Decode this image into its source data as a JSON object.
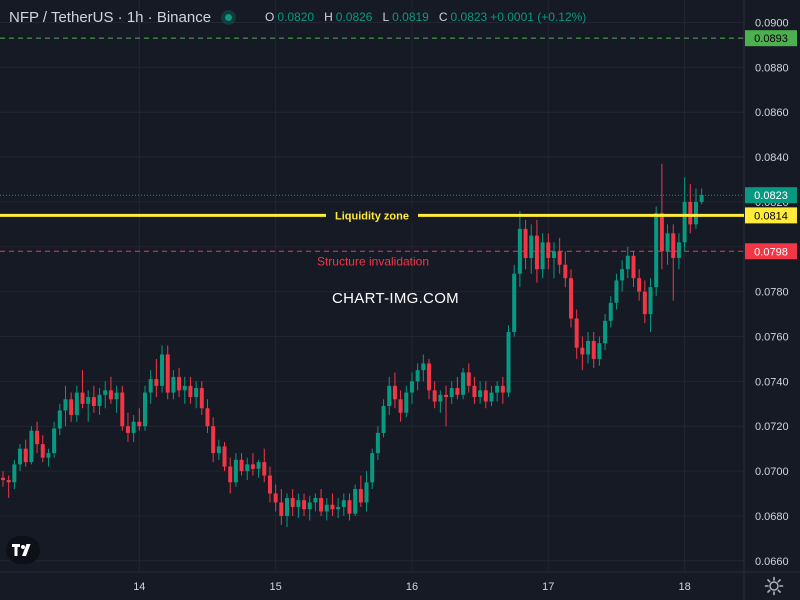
{
  "header": {
    "symbol": "NFP / TetherUS · 1h · Binance",
    "ohlc": {
      "o_label": "O",
      "o": "0.0820",
      "h_label": "H",
      "h": "0.0826",
      "l_label": "L",
      "l": "0.0819",
      "c_label": "C",
      "c": "0.0823",
      "change": "+0.0001 (+0.12%)"
    }
  },
  "watermark": "CHART-IMG.COM",
  "colors": {
    "background": "#161a25",
    "up": "#089981",
    "down": "#f23645",
    "grid": "#232632",
    "axis_text": "#d1d4dc",
    "liquidity": "#ffeb3b",
    "invalidation": "#f23645",
    "target": "#4caf50"
  },
  "icons": {
    "logo": "tradingview-logo-icon",
    "settings": "gear-icon"
  },
  "chart_data": {
    "type": "candlestick",
    "title": "",
    "xlabel": "",
    "ylabel": "",
    "ylim": [
      0.0655,
      0.0902
    ],
    "y_ticks": [
      "0.0660",
      "0.0680",
      "0.0700",
      "0.0720",
      "0.0740",
      "0.0760",
      "0.0780",
      "0.0800",
      "0.0820",
      "0.0840",
      "0.0860",
      "0.0880",
      "0.0900"
    ],
    "x_ticks": [
      {
        "label": "14",
        "bar": 24
      },
      {
        "label": "15",
        "bar": 48
      },
      {
        "label": "16",
        "bar": 72
      },
      {
        "label": "17",
        "bar": 96
      },
      {
        "label": "18",
        "bar": 120
      }
    ],
    "grid": true,
    "current_price": {
      "value": 0.0823,
      "label": "0.0823"
    },
    "levels": [
      {
        "name": "Liquidity zone",
        "value": 0.0814,
        "label": "0.0814",
        "style": "solid",
        "color": "#ffeb3b"
      },
      {
        "name": "Structure invalidation",
        "value": 0.0798,
        "label": "0.0798",
        "style": "dashed",
        "color": "#f23645"
      },
      {
        "name": "",
        "value": 0.0893,
        "label": "0.0893",
        "style": "dashed",
        "color": "#4caf50"
      }
    ],
    "candles_ohlc": [
      [
        0.0697,
        0.07,
        0.0693,
        0.0696
      ],
      [
        0.0696,
        0.0698,
        0.0688,
        0.0695
      ],
      [
        0.0695,
        0.0705,
        0.0692,
        0.0703
      ],
      [
        0.0703,
        0.0712,
        0.07,
        0.071
      ],
      [
        0.071,
        0.0714,
        0.0702,
        0.0704
      ],
      [
        0.0704,
        0.072,
        0.0703,
        0.0718
      ],
      [
        0.0718,
        0.0722,
        0.0708,
        0.0712
      ],
      [
        0.0712,
        0.0716,
        0.0704,
        0.0706
      ],
      [
        0.0706,
        0.071,
        0.0702,
        0.0708
      ],
      [
        0.0708,
        0.0722,
        0.0706,
        0.0719
      ],
      [
        0.0719,
        0.073,
        0.0716,
        0.0727
      ],
      [
        0.0727,
        0.0738,
        0.072,
        0.0732
      ],
      [
        0.0732,
        0.0735,
        0.0722,
        0.0725
      ],
      [
        0.0725,
        0.0738,
        0.0722,
        0.0735
      ],
      [
        0.0735,
        0.0745,
        0.0728,
        0.073
      ],
      [
        0.073,
        0.0736,
        0.0722,
        0.0733
      ],
      [
        0.0733,
        0.0738,
        0.0726,
        0.0729
      ],
      [
        0.0729,
        0.0737,
        0.0725,
        0.0734
      ],
      [
        0.0734,
        0.074,
        0.0728,
        0.0736
      ],
      [
        0.0736,
        0.0742,
        0.073,
        0.0732
      ],
      [
        0.0732,
        0.0738,
        0.0726,
        0.0735
      ],
      [
        0.0735,
        0.0738,
        0.0718,
        0.072
      ],
      [
        0.072,
        0.0726,
        0.0713,
        0.0717
      ],
      [
        0.0717,
        0.0725,
        0.0713,
        0.0722
      ],
      [
        0.0722,
        0.0728,
        0.0718,
        0.072
      ],
      [
        0.072,
        0.0738,
        0.0718,
        0.0735
      ],
      [
        0.0735,
        0.0745,
        0.073,
        0.0741
      ],
      [
        0.0741,
        0.075,
        0.0733,
        0.0738
      ],
      [
        0.0738,
        0.0756,
        0.0735,
        0.0752
      ],
      [
        0.0752,
        0.0756,
        0.0732,
        0.0735
      ],
      [
        0.0735,
        0.0745,
        0.0732,
        0.0742
      ],
      [
        0.0742,
        0.0746,
        0.0733,
        0.0736
      ],
      [
        0.0736,
        0.0742,
        0.073,
        0.0738
      ],
      [
        0.0738,
        0.0742,
        0.073,
        0.0733
      ],
      [
        0.0733,
        0.074,
        0.0728,
        0.0737
      ],
      [
        0.0737,
        0.074,
        0.0725,
        0.0728
      ],
      [
        0.0728,
        0.0732,
        0.0717,
        0.072
      ],
      [
        0.072,
        0.0724,
        0.0704,
        0.0708
      ],
      [
        0.0708,
        0.0714,
        0.0705,
        0.0711
      ],
      [
        0.0711,
        0.0713,
        0.07,
        0.0702
      ],
      [
        0.0702,
        0.0706,
        0.069,
        0.0695
      ],
      [
        0.0695,
        0.0708,
        0.0693,
        0.0705
      ],
      [
        0.0705,
        0.0708,
        0.0698,
        0.07
      ],
      [
        0.07,
        0.0706,
        0.0696,
        0.0703
      ],
      [
        0.0703,
        0.0708,
        0.0698,
        0.0701
      ],
      [
        0.0701,
        0.0705,
        0.0697,
        0.0704
      ],
      [
        0.0704,
        0.071,
        0.0695,
        0.0698
      ],
      [
        0.0698,
        0.0702,
        0.0686,
        0.069
      ],
      [
        0.069,
        0.0694,
        0.0682,
        0.0686
      ],
      [
        0.0686,
        0.0692,
        0.0676,
        0.068
      ],
      [
        0.068,
        0.069,
        0.0675,
        0.0688
      ],
      [
        0.0688,
        0.0692,
        0.068,
        0.0684
      ],
      [
        0.0684,
        0.069,
        0.0679,
        0.0687
      ],
      [
        0.0687,
        0.069,
        0.068,
        0.0683
      ],
      [
        0.0683,
        0.0689,
        0.0678,
        0.0686
      ],
      [
        0.0686,
        0.069,
        0.0682,
        0.0688
      ],
      [
        0.0688,
        0.0692,
        0.068,
        0.0682
      ],
      [
        0.0682,
        0.0688,
        0.0678,
        0.0685
      ],
      [
        0.0685,
        0.069,
        0.068,
        0.0683
      ],
      [
        0.0683,
        0.0688,
        0.0679,
        0.0684
      ],
      [
        0.0684,
        0.069,
        0.068,
        0.0687
      ],
      [
        0.0687,
        0.069,
        0.0678,
        0.0681
      ],
      [
        0.0681,
        0.0694,
        0.068,
        0.0692
      ],
      [
        0.0692,
        0.0698,
        0.0684,
        0.0686
      ],
      [
        0.0686,
        0.07,
        0.0682,
        0.0695
      ],
      [
        0.0695,
        0.071,
        0.0692,
        0.0708
      ],
      [
        0.0708,
        0.072,
        0.0705,
        0.0717
      ],
      [
        0.0717,
        0.0732,
        0.0715,
        0.0729
      ],
      [
        0.0729,
        0.0742,
        0.0725,
        0.0738
      ],
      [
        0.0738,
        0.0744,
        0.0728,
        0.0732
      ],
      [
        0.0732,
        0.0736,
        0.0722,
        0.0726
      ],
      [
        0.0726,
        0.0738,
        0.0724,
        0.0735
      ],
      [
        0.0735,
        0.0744,
        0.073,
        0.074
      ],
      [
        0.074,
        0.0748,
        0.0736,
        0.0745
      ],
      [
        0.0745,
        0.0752,
        0.074,
        0.0748
      ],
      [
        0.0748,
        0.075,
        0.0732,
        0.0736
      ],
      [
        0.0736,
        0.074,
        0.0728,
        0.0731
      ],
      [
        0.0731,
        0.0736,
        0.0726,
        0.0734
      ],
      [
        0.0734,
        0.0738,
        0.072,
        0.0733
      ],
      [
        0.0733,
        0.074,
        0.073,
        0.0737
      ],
      [
        0.0737,
        0.0742,
        0.0732,
        0.0734
      ],
      [
        0.0734,
        0.0746,
        0.0732,
        0.0744
      ],
      [
        0.0744,
        0.0748,
        0.0735,
        0.0738
      ],
      [
        0.0738,
        0.0742,
        0.073,
        0.0733
      ],
      [
        0.0733,
        0.074,
        0.073,
        0.0736
      ],
      [
        0.0736,
        0.074,
        0.0728,
        0.0731
      ],
      [
        0.0731,
        0.0738,
        0.0729,
        0.0735
      ],
      [
        0.0735,
        0.074,
        0.0731,
        0.0738
      ],
      [
        0.0738,
        0.0742,
        0.073,
        0.0735
      ],
      [
        0.0735,
        0.0765,
        0.0733,
        0.0762
      ],
      [
        0.0762,
        0.0792,
        0.076,
        0.0788
      ],
      [
        0.0788,
        0.0816,
        0.0782,
        0.0808
      ],
      [
        0.0808,
        0.0812,
        0.079,
        0.0795
      ],
      [
        0.0795,
        0.081,
        0.0788,
        0.0805
      ],
      [
        0.0805,
        0.0812,
        0.0784,
        0.079
      ],
      [
        0.079,
        0.0806,
        0.0786,
        0.0802
      ],
      [
        0.0802,
        0.0806,
        0.079,
        0.0795
      ],
      [
        0.0795,
        0.0802,
        0.0786,
        0.0798
      ],
      [
        0.0798,
        0.0804,
        0.0788,
        0.0792
      ],
      [
        0.0792,
        0.0798,
        0.0782,
        0.0786
      ],
      [
        0.0786,
        0.079,
        0.0764,
        0.0768
      ],
      [
        0.0768,
        0.0772,
        0.075,
        0.0755
      ],
      [
        0.0755,
        0.076,
        0.0745,
        0.0752
      ],
      [
        0.0752,
        0.0762,
        0.0748,
        0.0758
      ],
      [
        0.0758,
        0.0762,
        0.0746,
        0.075
      ],
      [
        0.075,
        0.076,
        0.0747,
        0.0757
      ],
      [
        0.0757,
        0.077,
        0.0754,
        0.0767
      ],
      [
        0.0767,
        0.0778,
        0.0764,
        0.0775
      ],
      [
        0.0775,
        0.0788,
        0.0772,
        0.0785
      ],
      [
        0.0785,
        0.0794,
        0.078,
        0.079
      ],
      [
        0.079,
        0.08,
        0.0786,
        0.0796
      ],
      [
        0.0796,
        0.0798,
        0.0782,
        0.0786
      ],
      [
        0.0786,
        0.079,
        0.0776,
        0.078
      ],
      [
        0.078,
        0.0785,
        0.0766,
        0.077
      ],
      [
        0.077,
        0.0786,
        0.0762,
        0.0782
      ],
      [
        0.0782,
        0.0818,
        0.0778,
        0.0815
      ],
      [
        0.0815,
        0.0837,
        0.079,
        0.0798
      ],
      [
        0.0798,
        0.081,
        0.0792,
        0.0806
      ],
      [
        0.0806,
        0.081,
        0.0776,
        0.0795
      ],
      [
        0.0795,
        0.0806,
        0.079,
        0.0802
      ],
      [
        0.0802,
        0.0831,
        0.0798,
        0.082
      ],
      [
        0.082,
        0.0828,
        0.0806,
        0.081
      ],
      [
        0.081,
        0.0826,
        0.0808,
        0.082
      ],
      [
        0.082,
        0.0826,
        0.0819,
        0.0823
      ]
    ]
  }
}
